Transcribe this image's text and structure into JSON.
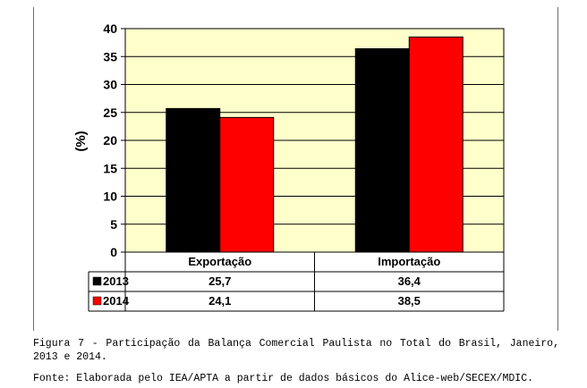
{
  "chart_data": {
    "type": "bar",
    "categories": [
      "Exportação",
      "Importação"
    ],
    "series": [
      {
        "name": "2013",
        "values": [
          25.7,
          36.4
        ],
        "labels": [
          "25,7",
          "36,4"
        ],
        "color": "#000000"
      },
      {
        "name": "2014",
        "values": [
          24.1,
          38.5
        ],
        "labels": [
          "24,1",
          "38,5"
        ],
        "color": "#ff0000"
      }
    ],
    "ylabel": "(%)",
    "ylim": [
      0,
      40
    ],
    "yticks": [
      "0",
      "5",
      "10",
      "15",
      "20",
      "25",
      "30",
      "35",
      "40"
    ],
    "plot_background": "#ffffcc",
    "data_table": true
  },
  "caption": "Figura 7 - Participação da Balança Comercial Paulista no Total do Brasil, Janeiro, 2013 e 2014.",
  "source": "Fonte: Elaborada pelo IEA/APTA a partir de dados básicos do Alice-web/SECEX/MDIC."
}
